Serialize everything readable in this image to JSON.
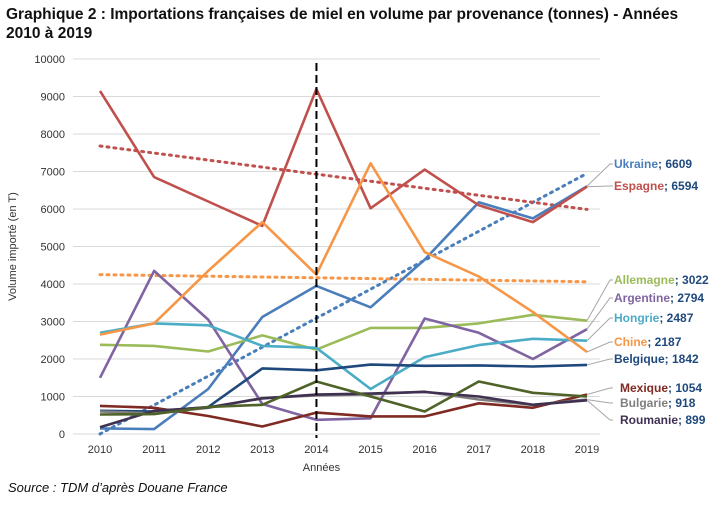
{
  "title": "Graphique 2 : Importations françaises de miel en volume par provenance (tonnes) - Années 2010 à 2019",
  "source": "Source : TDM d’après Douane France",
  "chart_data": {
    "type": "line",
    "xlabel": "Années",
    "ylabel": "Volume importé (en T)",
    "ylim": [
      0,
      10000
    ],
    "ystep": 1000,
    "grid": true,
    "x": [
      2010,
      2011,
      2012,
      2013,
      2014,
      2015,
      2016,
      2017,
      2018,
      2019
    ],
    "marker_year": 2014,
    "series": [
      {
        "name": "Ukraine",
        "label_value": "6609",
        "color": "#4a7ebb",
        "values": [
          150,
          130,
          1200,
          3120,
          3950,
          3380,
          4650,
          6180,
          5750,
          6609
        ]
      },
      {
        "name": "Espagne",
        "label_value": "6594",
        "color": "#c0504d",
        "values": [
          9150,
          6850,
          6200,
          5550,
          9200,
          6020,
          7050,
          6100,
          5650,
          6594
        ]
      },
      {
        "name": "Allemagne",
        "label_value": "3022",
        "color": "#9bbb59",
        "values": [
          2380,
          2350,
          2200,
          2630,
          2250,
          2830,
          2830,
          2950,
          3180,
          3022
        ]
      },
      {
        "name": "Argentine",
        "label_value": "2794",
        "color": "#8064a2",
        "values": [
          1500,
          4350,
          3050,
          800,
          380,
          420,
          3080,
          2700,
          2000,
          2794
        ]
      },
      {
        "name": "Hongrie",
        "label_value": "2487",
        "color": "#4bacc6",
        "values": [
          2700,
          2950,
          2900,
          2350,
          2300,
          1200,
          2050,
          2370,
          2540,
          2487
        ]
      },
      {
        "name": "Chine",
        "label_value": "2187",
        "color": "#f79646",
        "values": [
          2650,
          2950,
          4350,
          5650,
          4250,
          7220,
          4850,
          4200,
          3250,
          2187
        ]
      },
      {
        "name": "Belgique",
        "label_value": "1842",
        "color": "#1f497d",
        "values": [
          620,
          600,
          720,
          1750,
          1700,
          1850,
          1820,
          1830,
          1800,
          1842
        ]
      },
      {
        "name": "Mexique",
        "label_value": "1054",
        "color": "#7f2a22",
        "values": [
          750,
          700,
          480,
          200,
          570,
          470,
          470,
          820,
          700,
          1054
        ]
      },
      {
        "name": "Bulgarie",
        "label_value": "918",
        "color": "#7f7f7f",
        "values": [
          600,
          550,
          700,
          960,
          1030,
          1060,
          1130,
          920,
          780,
          918
        ]
      },
      {
        "name": "Roumanie",
        "label_value": "899",
        "color": "#403152",
        "values": [
          180,
          620,
          710,
          950,
          1050,
          1080,
          1120,
          1000,
          780,
          899
        ]
      },
      {
        "name": "Mexique-green",
        "label_value": "",
        "color": "#4f6228",
        "values": [
          520,
          530,
          720,
          780,
          1400,
          1000,
          600,
          1400,
          1100,
          1000
        ]
      }
    ],
    "trendlines": [
      {
        "of": "Ukraine",
        "color": "#4a7ebb",
        "from": 0,
        "to": 6950
      },
      {
        "of": "Espagne",
        "color": "#c0504d",
        "from": 7680,
        "to": 5990
      },
      {
        "of": "Chine",
        "color": "#f79646",
        "from": 4250,
        "to": 4060
      }
    ],
    "labels": [
      {
        "series": "Ukraine",
        "name": "Ukraine",
        "value": "6609",
        "name_color": "#4a7ebb"
      },
      {
        "series": "Espagne",
        "name": "Espagne",
        "value": "6594",
        "name_color": "#c0504d"
      },
      {
        "series": "Allemagne",
        "name": "Allemagne",
        "value": "3022",
        "name_color": "#9bbb59"
      },
      {
        "series": "Argentine",
        "name": "Argentine",
        "value": "2794",
        "name_color": "#8064a2"
      },
      {
        "series": "Hongrie",
        "name": "Hongrie",
        "value": "2487",
        "name_color": "#4bacc6"
      },
      {
        "series": "Chine",
        "name": "Chine",
        "value": "2187",
        "name_color": "#f79646"
      },
      {
        "series": "Belgique",
        "name": "Belgique",
        "value": "1842",
        "name_color": "#1f497d"
      },
      {
        "series": "Mexique",
        "name": "Mexique",
        "value": "1054",
        "name_color": "#7f2a22"
      },
      {
        "series": "Bulgarie",
        "name": "Bulgarie",
        "value": "918",
        "name_color": "#7f7f7f"
      },
      {
        "series": "Roumanie",
        "name": "Roumanie",
        "value": "899",
        "name_color": "#403152"
      }
    ]
  }
}
